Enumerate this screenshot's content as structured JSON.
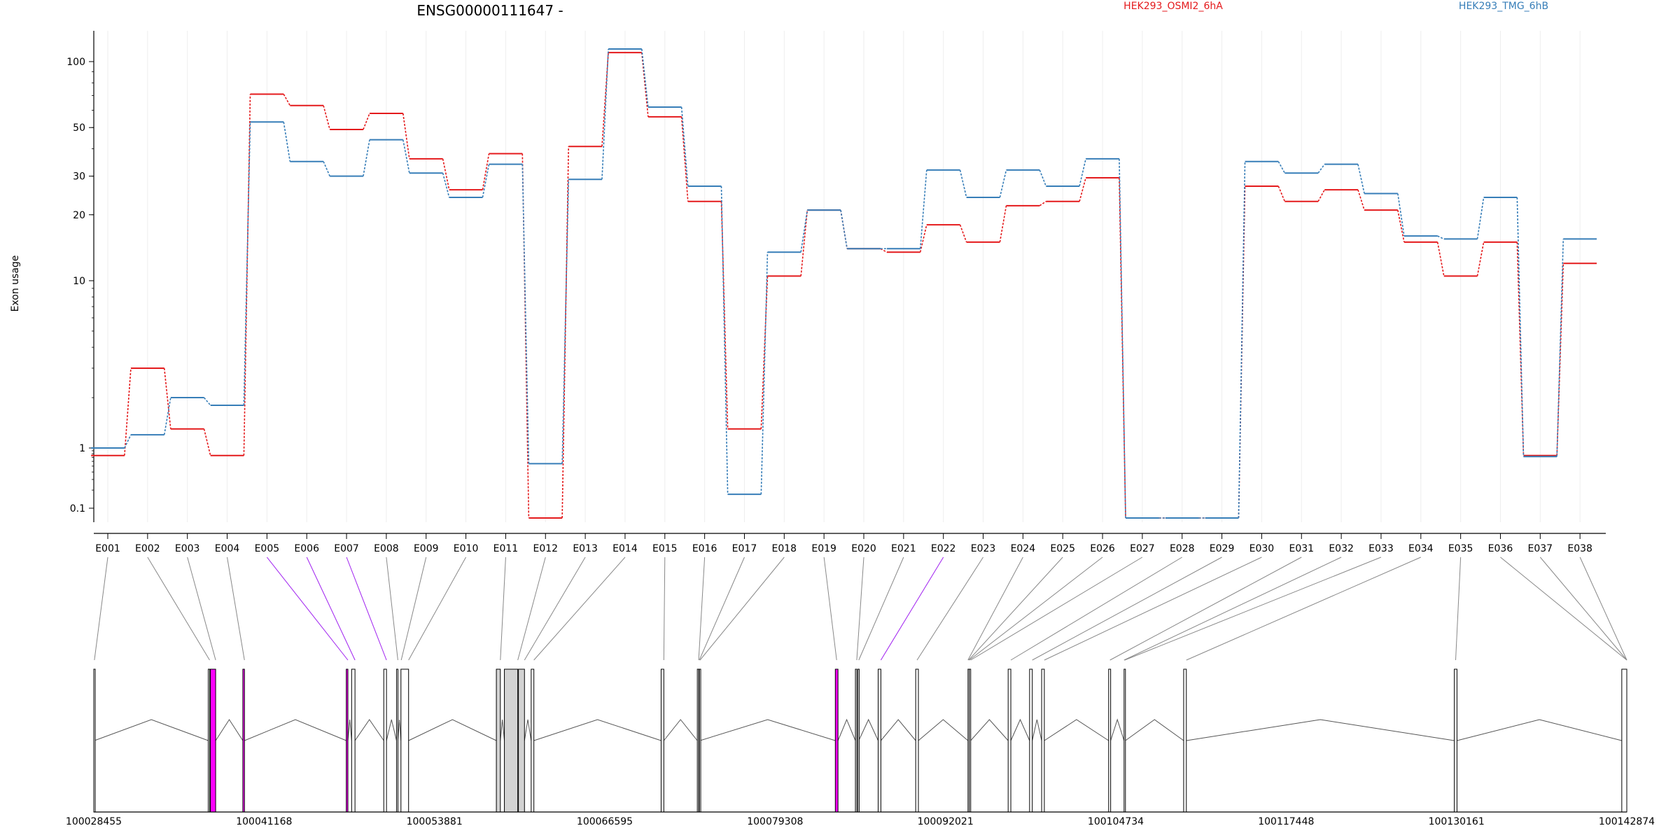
{
  "chart_data": {
    "type": "line",
    "title": "ENSG00000111647 -",
    "ylabel": "Exon usage",
    "yscale": "log",
    "y_ticks": [
      0.1,
      1,
      10,
      20,
      30,
      50,
      100
    ],
    "y_tick_labels": [
      "0.1",
      "1",
      "10",
      "20",
      "30",
      "50",
      "100"
    ],
    "categories": [
      "E001",
      "E002",
      "E003",
      "E004",
      "E005",
      "E006",
      "E007",
      "E008",
      "E009",
      "E010",
      "E011",
      "E012",
      "E013",
      "E014",
      "E015",
      "E016",
      "E017",
      "E018",
      "E019",
      "E020",
      "E021",
      "E022",
      "E023",
      "E024",
      "E025",
      "E026",
      "E027",
      "E028",
      "E029",
      "E030",
      "E031",
      "E032",
      "E033",
      "E034",
      "E035",
      "E036",
      "E037",
      "E038"
    ],
    "series": [
      {
        "name": "HEK293_OSMI2_6hA",
        "color": "#e41a1c",
        "values": [
          0.75,
          3.0,
          1.3,
          0.75,
          71.0,
          63.0,
          49.0,
          58.0,
          36.0,
          26.0,
          38.0,
          0.07,
          41.0,
          118.0,
          56.0,
          23.0,
          1.3,
          10.5,
          21.0,
          14.0,
          13.5,
          18.0,
          15.0,
          22.0,
          23.0,
          29.5,
          0.07,
          0.07,
          0.07,
          27.0,
          23.0,
          26.0,
          21.0,
          15.0,
          10.5,
          15.0,
          0.75,
          12.0
        ]
      },
      {
        "name": "HEK293_TMG_6hB",
        "color": "#377eb8",
        "values": [
          1.0,
          1.2,
          2.0,
          1.8,
          53.0,
          35.0,
          30.0,
          44.0,
          31.0,
          24.0,
          34.0,
          0.55,
          29.0,
          126.0,
          62.0,
          27.0,
          0.17,
          13.5,
          21.0,
          14.0,
          14.0,
          32.0,
          24.0,
          32.0,
          27.0,
          36.0,
          0.07,
          0.07,
          0.07,
          35.0,
          31.0,
          34.0,
          25.0,
          16.0,
          15.5,
          24.0,
          0.72,
          15.5
        ]
      }
    ],
    "gene_model": {
      "coordinate_labels": [
        "100028455",
        "100041168",
        "100053881",
        "100066595",
        "100079308",
        "100092021",
        "100104734",
        "100117448",
        "100130161",
        "100142874"
      ],
      "coord_min": 100028455,
      "coord_max": 100142874,
      "exon_bins": [
        {
          "start": 100028455,
          "end": 100028500,
          "fill": "#ffffff"
        },
        {
          "start": 100037000,
          "end": 100037100,
          "fill": "#ffffff"
        },
        {
          "start": 100037150,
          "end": 100037550,
          "fill": "#ff00ff"
        },
        {
          "start": 100039580,
          "end": 100039700,
          "fill": "#ff00ff"
        },
        {
          "start": 100047300,
          "end": 100047420,
          "fill": "#ff00ff"
        },
        {
          "start": 100047700,
          "end": 100047950,
          "fill": "#ffffff"
        },
        {
          "start": 100050100,
          "end": 100050300,
          "fill": "#ffffff"
        },
        {
          "start": 100051050,
          "end": 100051150,
          "fill": "#ffffff"
        },
        {
          "start": 100051380,
          "end": 100051950,
          "fill": "#ffffff"
        },
        {
          "start": 100058500,
          "end": 100058800,
          "fill": "#d3d3d3"
        },
        {
          "start": 100059100,
          "end": 100060100,
          "fill": "#d3d3d3"
        },
        {
          "start": 100060150,
          "end": 100060600,
          "fill": "#d3d3d3"
        },
        {
          "start": 100061100,
          "end": 100061300,
          "fill": "#ffffff"
        },
        {
          "start": 100070800,
          "end": 100071000,
          "fill": "#ffffff"
        },
        {
          "start": 100073500,
          "end": 100073600,
          "fill": "#ffffff"
        },
        {
          "start": 100073650,
          "end": 100073700,
          "fill": "#ffffff"
        },
        {
          "start": 100083800,
          "end": 100084000,
          "fill": "#ff00ff"
        },
        {
          "start": 100085300,
          "end": 100085400,
          "fill": "#ffffff"
        },
        {
          "start": 100085480,
          "end": 100085550,
          "fill": "#ffffff"
        },
        {
          "start": 100087000,
          "end": 100087200,
          "fill": "#ffffff"
        },
        {
          "start": 100089800,
          "end": 100090000,
          "fill": "#ffffff"
        },
        {
          "start": 100093700,
          "end": 100093780,
          "fill": "#ffffff"
        },
        {
          "start": 100093800,
          "end": 100093900,
          "fill": "#ffffff"
        },
        {
          "start": 100096700,
          "end": 100096900,
          "fill": "#ffffff"
        },
        {
          "start": 100098300,
          "end": 100098500,
          "fill": "#ffffff"
        },
        {
          "start": 100099200,
          "end": 100099400,
          "fill": "#ffffff"
        },
        {
          "start": 100104200,
          "end": 100104350,
          "fill": "#ffffff"
        },
        {
          "start": 100105350,
          "end": 100105450,
          "fill": "#ffffff"
        },
        {
          "start": 100109800,
          "end": 100110000,
          "fill": "#ffffff"
        },
        {
          "start": 100130000,
          "end": 100130200,
          "fill": "#ffffff"
        },
        {
          "start": 100142500,
          "end": 100142874,
          "fill": "#ffffff"
        }
      ],
      "connector_targets": [
        100028500,
        100037100,
        100037550,
        100039700,
        100047420,
        100047950,
        100050300,
        100051150,
        100051400,
        100051950,
        100058800,
        100060100,
        100060600,
        100061300,
        100071000,
        100073600,
        100073650,
        100073700,
        100083900,
        100085400,
        100085550,
        100087200,
        100089900,
        100093700,
        100093750,
        100093800,
        100093900,
        100096900,
        100098500,
        100099400,
        100104300,
        100105350,
        100105400,
        100110000,
        100130100,
        100142874,
        100142874,
        100142874
      ],
      "highlighted_exons": [
        "E005",
        "E006",
        "E007",
        "E022"
      ],
      "highlight_color": "#a020f0"
    }
  }
}
